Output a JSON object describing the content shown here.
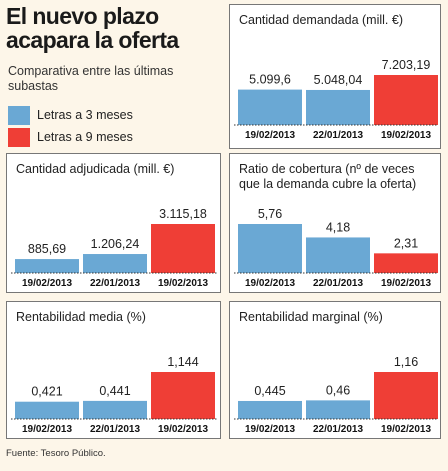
{
  "header": {
    "title": "El nuevo plazo acapara la oferta",
    "subtitle": "Comparativa entre las últimas subastas"
  },
  "legend": [
    {
      "label": "Letras a 3 meses",
      "color": "#6aa8d4"
    },
    {
      "label": "Letras a 9 meses",
      "color": "#ef3e36"
    }
  ],
  "source": "Fuente: Tesoro Público.",
  "chart_data": [
    {
      "type": "bar",
      "title": "Cantidad demandada (mill. €)",
      "categories": [
        "19/02/2013",
        "22/01/2013",
        "19/02/2013"
      ],
      "values": [
        5099.6,
        5048.04,
        7203.19
      ],
      "labels": [
        "5.099,6",
        "5.048,04",
        "7.203,19"
      ],
      "colors": [
        "#6aa8d4",
        "#6aa8d4",
        "#ef3e36"
      ]
    },
    {
      "type": "bar",
      "title": "Cantidad adjudicada (mill. €)",
      "categories": [
        "19/02/2013",
        "22/01/2013",
        "19/02/2013"
      ],
      "values": [
        885.69,
        1206.24,
        3115.18
      ],
      "labels": [
        "885,69",
        "1.206,24",
        "3.115,18"
      ],
      "colors": [
        "#6aa8d4",
        "#6aa8d4",
        "#ef3e36"
      ]
    },
    {
      "type": "bar",
      "title": "Ratio de cobertura (nº de veces que la demanda cubre la oferta)",
      "categories": [
        "19/02/2013",
        "22/01/2013",
        "19/02/2013"
      ],
      "values": [
        5.76,
        4.18,
        2.31
      ],
      "labels": [
        "5,76",
        "4,18",
        "2,31"
      ],
      "colors": [
        "#6aa8d4",
        "#6aa8d4",
        "#ef3e36"
      ]
    },
    {
      "type": "bar",
      "title": "Rentabilidad media (%)",
      "categories": [
        "19/02/2013",
        "22/01/2013",
        "19/02/2013"
      ],
      "values": [
        0.421,
        0.441,
        1.144
      ],
      "labels": [
        "0,421",
        "0,441",
        "1,144"
      ],
      "colors": [
        "#6aa8d4",
        "#6aa8d4",
        "#ef3e36"
      ]
    },
    {
      "type": "bar",
      "title": "Rentabilidad marginal (%)",
      "categories": [
        "19/02/2013",
        "22/01/2013",
        "19/02/2013"
      ],
      "values": [
        0.445,
        0.46,
        1.16
      ],
      "labels": [
        "0,445",
        "0,46",
        "1,16"
      ],
      "colors": [
        "#6aa8d4",
        "#6aa8d4",
        "#ef3e36"
      ]
    }
  ]
}
